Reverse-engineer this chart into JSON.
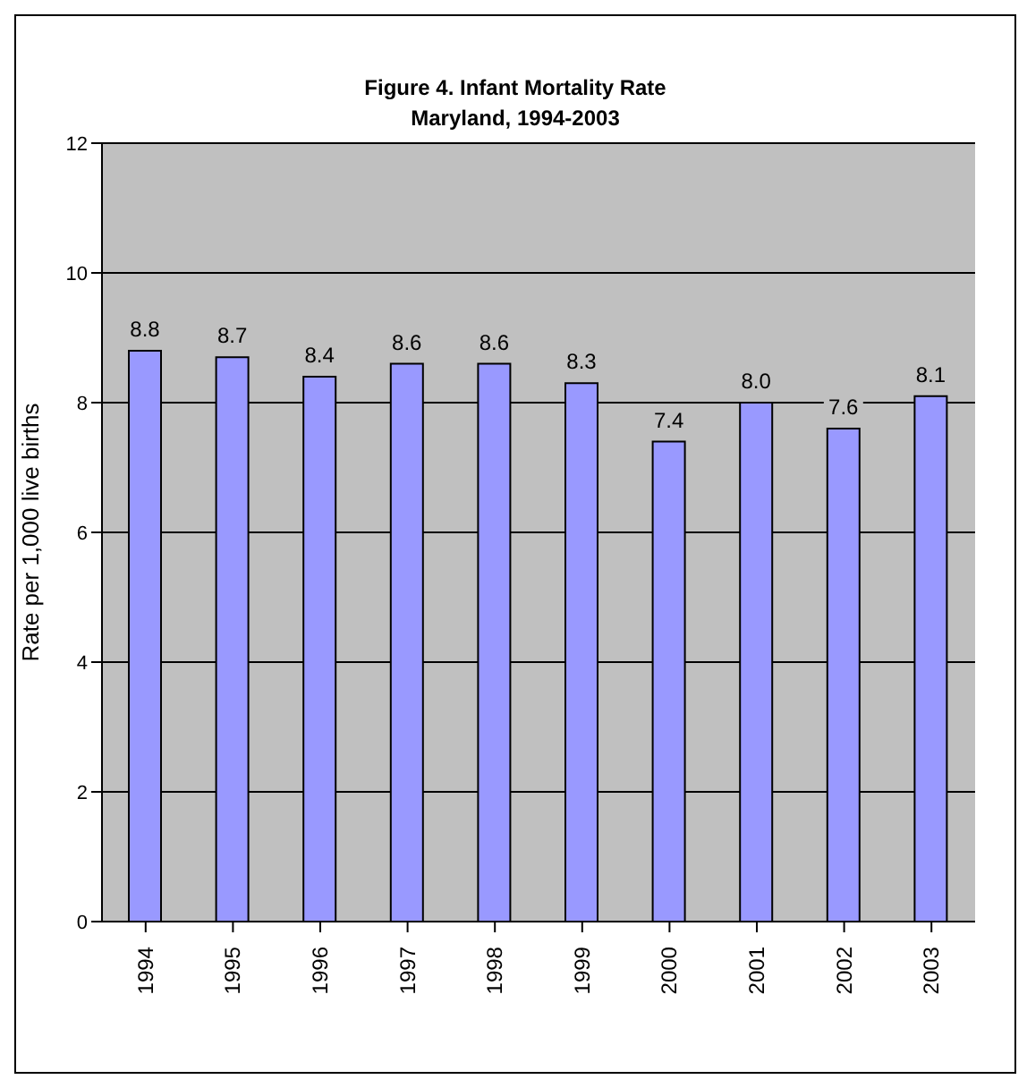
{
  "chart_data": {
    "type": "bar",
    "title": "Figure 4. Infant Mortality Rate\nMaryland, 1994-2003",
    "ylabel": "Rate per 1,000 live births",
    "categories": [
      "1994",
      "1995",
      "1996",
      "1997",
      "1998",
      "1999",
      "2000",
      "2001",
      "2002",
      "2003"
    ],
    "values": [
      8.8,
      8.7,
      8.4,
      8.6,
      8.6,
      8.3,
      7.4,
      8.0,
      7.6,
      8.1
    ],
    "value_labels": [
      "8.8",
      "8.7",
      "8.4",
      "8.6",
      "8.6",
      "8.3",
      "7.4",
      "8.0",
      "7.6",
      "8.1"
    ],
    "color": "#9999ff",
    "ylim": [
      0,
      12
    ],
    "yticks": [
      0,
      2,
      4,
      6,
      8,
      10,
      12
    ],
    "grid": "y"
  }
}
